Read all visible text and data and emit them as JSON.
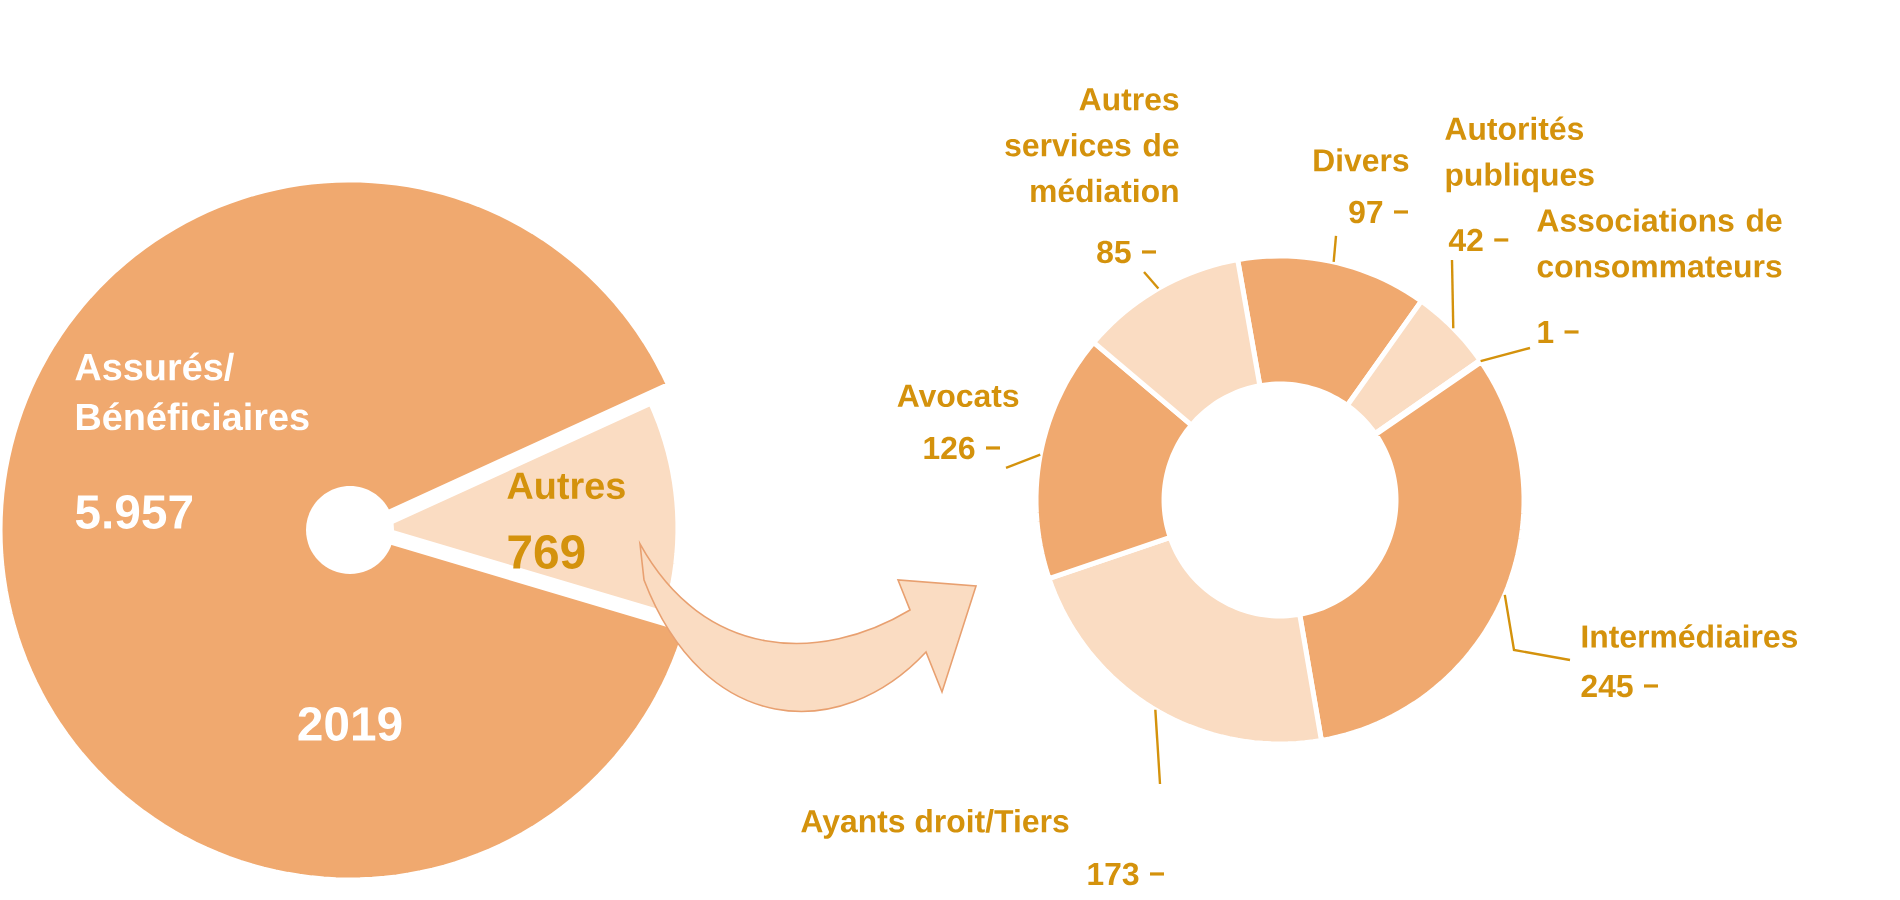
{
  "chart_data": [
    {
      "type": "pie",
      "categories": [
        "Assurés/ Bénéficiaires",
        "Autres"
      ],
      "values": [
        5957,
        769
      ],
      "value_labels": [
        "5.957",
        "769"
      ],
      "colors": [
        "#f0a96f",
        "#fadcc2"
      ],
      "annotations": [
        "2019"
      ]
    },
    {
      "type": "donut",
      "categories": [
        "Divers",
        "Autorités publiques",
        "Associations de consommateurs",
        "Intermédiaires",
        "Ayants droit/Tiers",
        "Avocats",
        "Autres services de médiation"
      ],
      "values": [
        97,
        42,
        1,
        245,
        173,
        126,
        85
      ],
      "colors": [
        "#f0a96f",
        "#fadcc2",
        "#fadcc2",
        "#f0a96f",
        "#fadcc2",
        "#f0a96f",
        "#fadcc2"
      ],
      "data_labels": true
    }
  ]
}
